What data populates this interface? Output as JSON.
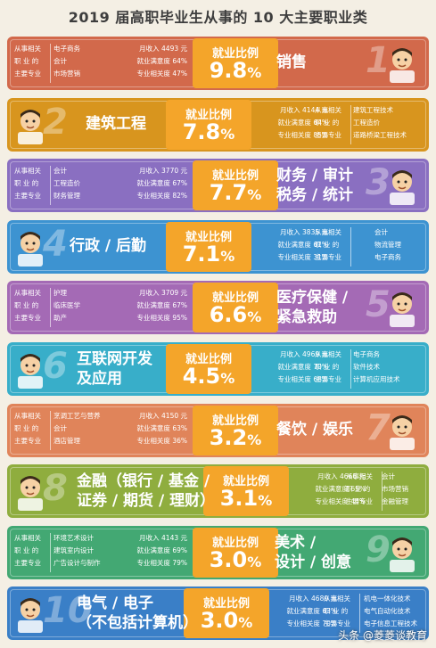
{
  "title": "2019 届高职毕业生从事的 10 大主要职业类",
  "labels": {
    "ratio": "就业比例",
    "income": "月收入",
    "satisfaction": "就业满意度",
    "relevance": "专业相关度",
    "major_label_1": "从事相关",
    "major_label_2": "职 业 的",
    "major_label_3": "主要专业"
  },
  "rows": [
    {
      "rank": "1",
      "category": [
        "销售"
      ],
      "ratio": "9.8",
      "income": "4493 元",
      "satisfaction": "64%",
      "relevance": "47%",
      "majors": [
        "电子商务",
        "会计",
        "市场营销"
      ],
      "color": "#d2694b"
    },
    {
      "rank": "2",
      "category": [
        "建筑工程"
      ],
      "ratio": "7.8",
      "income": "4144 元",
      "satisfaction": "64%",
      "relevance": "85%",
      "majors": [
        "建筑工程技术",
        "工程造价",
        "道路桥梁工程技术"
      ],
      "color": "#d8951e"
    },
    {
      "rank": "3",
      "category": [
        "财务 / 审计",
        "税务 / 统计"
      ],
      "ratio": "7.7",
      "income": "3770 元",
      "satisfaction": "67%",
      "relevance": "82%",
      "majors": [
        "会计",
        "工程造价",
        "财务管理"
      ],
      "color": "#8a6fc1"
    },
    {
      "rank": "4",
      "category": [
        "行政 / 后勤"
      ],
      "ratio": "7.1",
      "income": "3835 元",
      "satisfaction": "61%",
      "relevance": "31%",
      "majors": [
        "会计",
        "物流管理",
        "电子商务"
      ],
      "color": "#3d93d1"
    },
    {
      "rank": "5",
      "category": [
        "医疗保健 /",
        "紧急救助"
      ],
      "ratio": "6.6",
      "income": "3709 元",
      "satisfaction": "67%",
      "relevance": "95%",
      "majors": [
        "护理",
        "临床医学",
        "助产"
      ],
      "color": "#a46ab5"
    },
    {
      "rank": "6",
      "category": [
        "互联网开发",
        "及应用"
      ],
      "ratio": "4.5",
      "income": "4969 元",
      "satisfaction": "70%",
      "relevance": "68%",
      "majors": [
        "电子商务",
        "软件技术",
        "计算机应用技术"
      ],
      "color": "#38aec9"
    },
    {
      "rank": "7",
      "category": [
        "餐饮 / 娱乐"
      ],
      "ratio": "3.2",
      "income": "4150 元",
      "satisfaction": "63%",
      "relevance": "36%",
      "majors": [
        "烹调工艺与营养",
        "会计",
        "酒店管理"
      ],
      "color": "#e0845a"
    },
    {
      "rank": "8",
      "category": [
        "金融（银行 / 基金 /",
        "证券 / 期货 / 理财）"
      ],
      "ratio": "3.1",
      "income": "4666 元",
      "satisfaction": "65%",
      "relevance": "44%",
      "majors": [
        "会计",
        "市场营销",
        "金融管理"
      ],
      "color": "#8fad3e"
    },
    {
      "rank": "9",
      "category": [
        "美术 /",
        "设计 / 创意"
      ],
      "ratio": "3.0",
      "income": "4143 元",
      "satisfaction": "69%",
      "relevance": "79%",
      "majors": [
        "环境艺术设计",
        "建筑室内设计",
        "广告设计与制作"
      ],
      "color": "#43a873"
    },
    {
      "rank": "10",
      "category": [
        "电气 / 电子",
        "（不包括计算机）"
      ],
      "ratio": "3.0",
      "income": "4680 元",
      "satisfaction": "63%",
      "relevance": "70%",
      "majors": [
        "机电一体化技术",
        "电气自动化技术",
        "电子信息工程技术"
      ],
      "color": "#3a7fc7"
    }
  ],
  "watermark": "头条 @菱菱谈教育",
  "pct_sign": "%",
  "badge_color": "#f4a52a"
}
